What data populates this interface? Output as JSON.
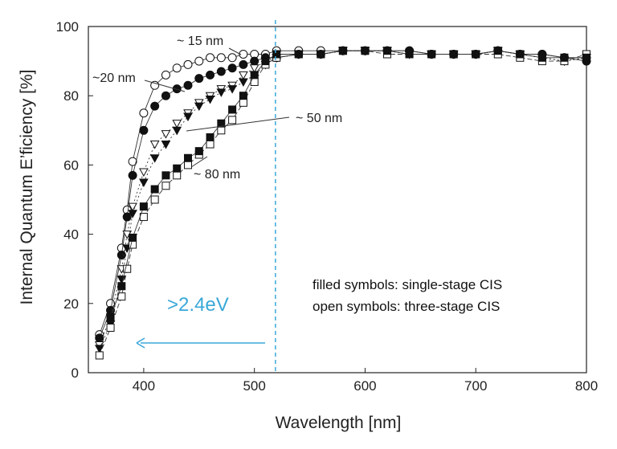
{
  "chart_data": {
    "type": "scatter",
    "title": "",
    "xlabel": "Wavelength [nm]",
    "ylabel": "Internal Quantum E’ficiency [%]",
    "xlim": [
      350,
      800
    ],
    "ylim": [
      0,
      100
    ],
    "xticks": [
      400,
      500,
      600,
      700,
      800
    ],
    "yticks": [
      0,
      20,
      40,
      60,
      80,
      100
    ],
    "grid": false,
    "series": [
      {
        "name": "~15 nm, three-stage CIS",
        "marker": "circle",
        "filled": false,
        "x": [
          360,
          370,
          380,
          385,
          390,
          400,
          410,
          420,
          430,
          440,
          450,
          460,
          470,
          480,
          490,
          500,
          510,
          520,
          540,
          560,
          580,
          600,
          620,
          640,
          660,
          680,
          700,
          720,
          740,
          760,
          780,
          800
        ],
        "y": [
          11,
          20,
          36,
          47,
          61,
          75,
          83,
          86,
          88,
          89,
          90,
          91,
          91,
          91,
          92,
          92,
          92,
          93,
          93,
          93,
          93,
          93,
          93,
          93,
          92,
          92,
          92,
          93,
          92,
          92,
          91,
          91
        ]
      },
      {
        "name": "~20 nm, single-stage CIS",
        "marker": "circle",
        "filled": true,
        "x": [
          360,
          370,
          380,
          385,
          390,
          400,
          410,
          420,
          430,
          440,
          450,
          460,
          470,
          480,
          490,
          500,
          510,
          520,
          540,
          560,
          580,
          600,
          620,
          640,
          660,
          680,
          700,
          720,
          740,
          760,
          780,
          800
        ],
        "y": [
          10,
          18,
          34,
          45,
          57,
          70,
          77,
          80,
          82,
          83,
          85,
          86,
          87,
          88,
          89,
          90,
          91,
          91,
          92,
          92,
          93,
          93,
          93,
          93,
          92,
          92,
          92,
          93,
          92,
          92,
          91,
          90
        ]
      },
      {
        "name": "~50 nm, three-stage CIS",
        "marker": "triangle-down",
        "filled": false,
        "x": [
          360,
          370,
          380,
          385,
          390,
          400,
          410,
          420,
          430,
          440,
          450,
          460,
          470,
          480,
          490,
          500,
          510,
          520,
          540,
          560,
          580,
          600,
          620,
          640,
          660,
          680,
          700,
          720,
          740,
          760,
          780,
          800
        ],
        "y": [
          8,
          16,
          30,
          40,
          48,
          58,
          66,
          69,
          72,
          75,
          78,
          80,
          82,
          83,
          86,
          88,
          90,
          91,
          92,
          92,
          93,
          93,
          93,
          92,
          92,
          92,
          92,
          93,
          92,
          91,
          90,
          91
        ]
      },
      {
        "name": "~50 nm, single-stage CIS",
        "marker": "triangle-down",
        "filled": true,
        "x": [
          360,
          370,
          380,
          385,
          390,
          400,
          410,
          420,
          430,
          440,
          450,
          460,
          470,
          480,
          490,
          500,
          510,
          520,
          540,
          560,
          580,
          600,
          620,
          640,
          660,
          680,
          700,
          720,
          740,
          760,
          780,
          800
        ],
        "y": [
          7,
          14,
          27,
          36,
          46,
          55,
          62,
          66,
          70,
          74,
          77,
          79,
          81,
          82,
          84,
          86,
          89,
          91,
          92,
          92,
          93,
          93,
          93,
          92,
          92,
          92,
          92,
          93,
          92,
          91,
          90,
          91
        ]
      },
      {
        "name": "~80 nm, three-stage CIS",
        "marker": "square",
        "filled": false,
        "x": [
          360,
          370,
          380,
          385,
          390,
          400,
          410,
          420,
          430,
          440,
          450,
          460,
          470,
          480,
          490,
          500,
          510,
          520,
          540,
          560,
          580,
          600,
          620,
          640,
          660,
          680,
          700,
          720,
          740,
          760,
          780,
          800
        ],
        "y": [
          5,
          13,
          22,
          30,
          37,
          45,
          50,
          54,
          57,
          60,
          63,
          66,
          70,
          73,
          78,
          84,
          89,
          91,
          92,
          92,
          93,
          93,
          92,
          92,
          92,
          92,
          92,
          92,
          91,
          90,
          90,
          92
        ]
      },
      {
        "name": "~80 nm, single-stage CIS",
        "marker": "square",
        "filled": true,
        "x": [
          370,
          380,
          390,
          400,
          410,
          420,
          430,
          440,
          450,
          460,
          470,
          480,
          490,
          500,
          510,
          520,
          540,
          560,
          580,
          600,
          620,
          640,
          660,
          680,
          700,
          720,
          740,
          760,
          780,
          800
        ],
        "y": [
          16,
          25,
          39,
          48,
          53,
          57,
          59,
          62,
          64,
          68,
          72,
          76,
          80,
          86,
          90,
          92,
          92,
          92,
          93,
          93,
          93,
          92,
          92,
          92,
          92,
          93,
          92,
          91,
          91,
          91
        ]
      }
    ],
    "annotations": [
      {
        "text": "~ 15 nm",
        "series": 0
      },
      {
        "text": "~20 nm",
        "series": 1
      },
      {
        "text": "~ 50 nm",
        "series": 3
      },
      {
        "text": "~ 80 nm",
        "series": 4
      }
    ],
    "reference_line": {
      "x": 519,
      "style": "dashed",
      "color": "#3aa8d8"
    },
    "energy_label": ">2.4eV",
    "notes": [
      "filled symbols: single-stage CIS",
      "open symbols: three-stage CIS"
    ]
  }
}
